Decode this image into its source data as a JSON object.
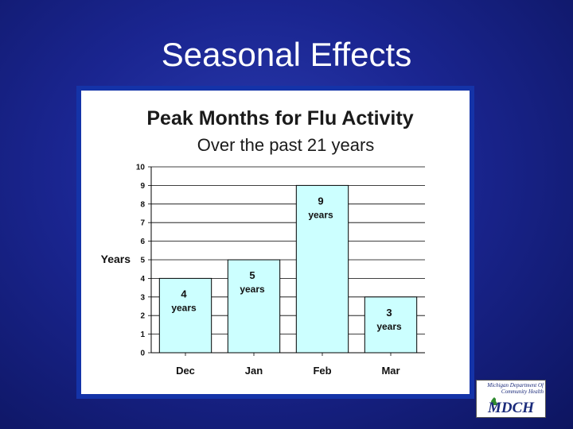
{
  "slide": {
    "title": "Seasonal Effects"
  },
  "chart_data": {
    "type": "bar",
    "title": "Peak Months for Flu Activity",
    "subtitle": "Over the past 21 years",
    "ylabel": "Years",
    "xlabel": "",
    "categories": [
      "Dec",
      "Jan",
      "Feb",
      "Mar"
    ],
    "values": [
      4,
      5,
      9,
      3
    ],
    "data_labels": [
      {
        "value": "4",
        "unit": "years"
      },
      {
        "value": "5",
        "unit": "years"
      },
      {
        "value": "9",
        "unit": "years"
      },
      {
        "value": "3",
        "unit": "years"
      }
    ],
    "yticks": [
      "0",
      "1",
      "2",
      "3",
      "4",
      "5",
      "6",
      "7",
      "8",
      "9",
      "10"
    ],
    "ylim": [
      0,
      10
    ],
    "grid": true,
    "legend": "none",
    "colors": {
      "bar_fill": "#ccffff",
      "bar_stroke": "#000000",
      "grid": "#000000"
    }
  },
  "logo": {
    "top_text": "Michigan Department Of Community Health",
    "bottom_text": "MDCH"
  }
}
